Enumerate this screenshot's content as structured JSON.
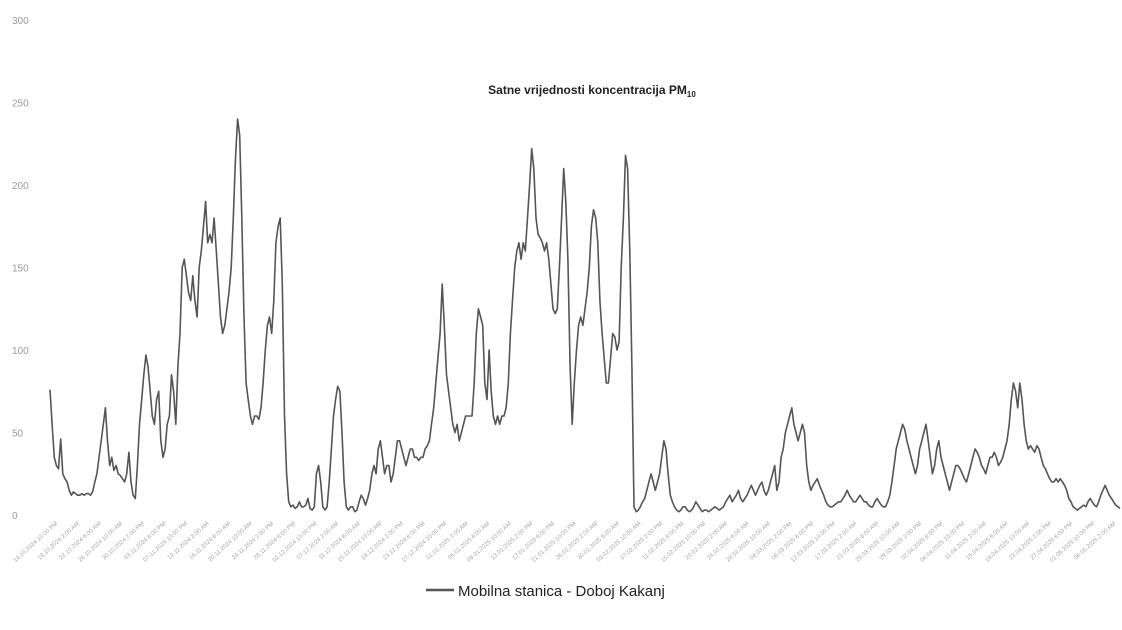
{
  "chart_data": {
    "type": "line",
    "title": "Satne vrijednosti koncentracija PM",
    "title_subscript": "10",
    "xlabel": "",
    "ylabel": "",
    "ylim": [
      0,
      300
    ],
    "yticks": [
      0,
      50,
      100,
      150,
      200,
      250,
      300
    ],
    "grid": false,
    "legend_position": "bottom",
    "line_color": "#555555",
    "series": [
      {
        "name": "Mobilna stanica - Doboj Kakanj",
        "values": [
          76,
          55,
          35,
          30,
          28,
          46,
          25,
          22,
          20,
          15,
          12,
          14,
          13,
          12,
          12,
          13,
          12,
          13,
          13,
          12,
          14,
          20,
          25,
          35,
          45,
          55,
          65,
          45,
          30,
          35,
          27,
          30,
          25,
          24,
          22,
          20,
          25,
          38,
          20,
          12,
          10,
          30,
          55,
          70,
          85,
          97,
          90,
          75,
          60,
          55,
          70,
          75,
          45,
          35,
          40,
          55,
          60,
          85,
          75,
          55,
          90,
          110,
          150,
          155,
          145,
          135,
          130,
          145,
          130,
          120,
          150,
          160,
          175,
          190,
          165,
          170,
          165,
          180,
          160,
          140,
          120,
          110,
          115,
          125,
          135,
          150,
          180,
          215,
          240,
          230,
          180,
          120,
          80,
          70,
          60,
          55,
          60,
          60,
          58,
          65,
          80,
          100,
          115,
          120,
          110,
          130,
          165,
          175,
          180,
          140,
          60,
          25,
          8,
          5,
          6,
          4,
          5,
          8,
          5,
          5,
          6,
          10,
          4,
          3,
          5,
          25,
          30,
          20,
          5,
          3,
          5,
          20,
          40,
          60,
          70,
          78,
          75,
          50,
          20,
          5,
          3,
          5,
          5,
          2,
          3,
          8,
          12,
          10,
          6,
          10,
          15,
          25,
          30,
          25,
          40,
          45,
          35,
          25,
          30,
          30,
          20,
          25,
          35,
          45,
          45,
          40,
          35,
          30,
          35,
          40,
          40,
          35,
          35,
          33,
          35,
          35,
          40,
          42,
          45,
          55,
          65,
          80,
          95,
          110,
          140,
          115,
          85,
          75,
          65,
          55,
          50,
          55,
          45,
          50,
          55,
          60,
          60,
          60,
          60,
          80,
          110,
          125,
          120,
          115,
          80,
          70,
          100,
          75,
          60,
          55,
          60,
          55,
          60,
          60,
          65,
          80,
          110,
          130,
          150,
          160,
          165,
          155,
          165,
          160,
          180,
          200,
          222,
          210,
          180,
          170,
          168,
          165,
          160,
          165,
          155,
          140,
          125,
          122,
          125,
          150,
          180,
          210,
          190,
          155,
          90,
          55,
          80,
          100,
          115,
          120,
          115,
          125,
          135,
          150,
          175,
          185,
          180,
          165,
          130,
          110,
          95,
          80,
          80,
          95,
          110,
          108,
          100,
          105,
          150,
          180,
          218,
          210,
          160,
          90,
          5,
          2,
          3,
          5,
          8,
          10,
          15,
          20,
          25,
          20,
          15,
          20,
          25,
          35,
          45,
          40,
          25,
          12,
          8,
          5,
          3,
          2,
          3,
          5,
          5,
          3,
          2,
          3,
          5,
          8,
          6,
          4,
          2,
          3,
          3,
          2,
          3,
          4,
          5,
          4,
          3,
          4,
          5,
          8,
          10,
          12,
          8,
          10,
          12,
          15,
          10,
          8,
          10,
          12,
          15,
          18,
          15,
          12,
          15,
          18,
          20,
          15,
          12,
          15,
          20,
          25,
          30,
          15,
          20,
          35,
          40,
          50,
          55,
          60,
          65,
          55,
          50,
          45,
          50,
          55,
          50,
          30,
          20,
          15,
          18,
          20,
          22,
          18,
          15,
          12,
          8,
          6,
          5,
          5,
          6,
          7,
          8,
          8,
          10,
          12,
          15,
          12,
          10,
          8,
          8,
          10,
          12,
          10,
          8,
          8,
          6,
          5,
          5,
          8,
          10,
          8,
          6,
          5,
          5,
          8,
          12,
          20,
          30,
          40,
          45,
          50,
          55,
          52,
          45,
          40,
          35,
          30,
          25,
          30,
          40,
          45,
          50,
          55,
          45,
          35,
          25,
          30,
          40,
          45,
          35,
          30,
          25,
          20,
          15,
          20,
          25,
          30,
          30,
          28,
          25,
          22,
          20,
          25,
          30,
          35,
          40,
          38,
          35,
          30,
          28,
          25,
          30,
          35,
          35,
          38,
          35,
          30,
          32,
          35,
          40,
          45,
          55,
          70,
          80,
          75,
          65,
          80,
          70,
          55,
          45,
          40,
          42,
          40,
          38,
          42,
          40,
          35,
          30,
          28,
          25,
          22,
          20,
          20,
          22,
          20,
          22,
          20,
          18,
          15,
          10,
          8,
          5,
          4,
          3,
          4,
          5,
          6,
          5,
          8,
          10,
          8,
          6,
          5,
          8,
          12,
          15,
          18,
          15,
          12,
          10,
          8,
          6,
          5,
          4
        ]
      }
    ],
    "x_tick_labels": [
      "14.10.2024 10:00 PM",
      "18.10.2024 2:00 AM",
      "22.10.2024 6:00 AM",
      "26.10.2024 10:00 AM",
      "30.10.2024 2:00 PM",
      "03.11.2024 6:00 PM",
      "07.11.2024 10:00 PM",
      "12.11.2024 2:00 AM",
      "16.11.2024 6:00 AM",
      "20.11.2024 10:00 AM",
      "24.11.2024 2:00 PM",
      "28.11.2024 6:00 PM",
      "02.12.2024 10:00 PM",
      "07.12.2024 2:00 AM",
      "11.12.2024 6:00 AM",
      "15.12.2024 10:00 AM",
      "19.12.2024 2:00 PM",
      "23.12.2024 6:00 PM",
      "27.12.2024 10:00 PM",
      "01.01.2025 2:00 AM",
      "05.01.2025 6:00 AM",
      "09.01.2025 10:00 AM",
      "13.01.2025 2:00 PM",
      "17.01.2025 6:00 PM",
      "21.01.2025 10:00 PM",
      "26.01.2025 2:00 AM",
      "30.01.2025 6:00 AM",
      "03.02.2025 10:00 AM",
      "07.02.2025 2:00 PM",
      "11.02.2025 6:00 PM",
      "15.02.2025 10:00 PM",
      "20.02.2025 2:00 AM",
      "24.02.2025 6:00 AM",
      "28.02.2025 10:00 AM",
      "04.03.2025 2:00 PM",
      "08.03.2025 6:00 PM",
      "12.03.2025 10:00 PM",
      "17.03.2025 2:00 AM",
      "21.03.2025 6:00 AM",
      "25.03.2025 10:00 AM",
      "29.03.2025 2:00 PM",
      "02.04.2025 6:00 PM",
      "06.04.2025 10:00 PM",
      "11.04.2025 2:00 AM",
      "15.04.2025 6:00 AM",
      "19.04.2025 10:00 AM",
      "23.04.2025 2:00 PM",
      "27.04.2025 6:00 PM",
      "01.05.2025 10:00 PM",
      "06.05.2025 2:00 AM"
    ]
  }
}
